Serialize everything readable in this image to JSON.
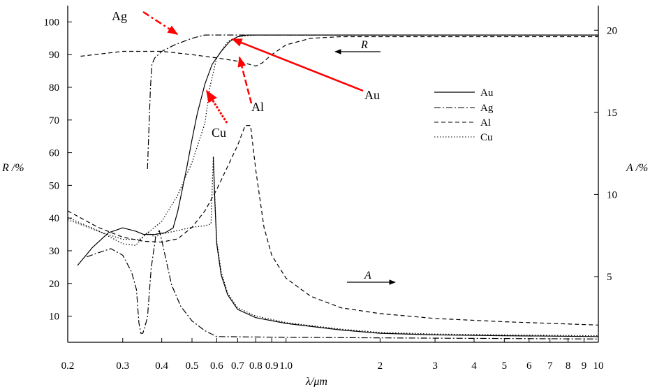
{
  "chart_data": {
    "type": "line",
    "title": "",
    "xlabel": "λ/μm",
    "ylabel_left": "R /%",
    "ylabel_right": "A /%",
    "x_scale": "log",
    "xlim": [
      0.2,
      10
    ],
    "ylim_left": [
      2,
      105
    ],
    "ylim_right": [
      1,
      21.5
    ],
    "x_ticks": [
      {
        "v": 0.2,
        "label": "0.2"
      },
      {
        "v": 0.3,
        "label": "0.3"
      },
      {
        "v": 0.4,
        "label": "0.4"
      },
      {
        "v": 0.5,
        "label": "0.5"
      },
      {
        "v": 0.6,
        "label": "0.6"
      },
      {
        "v": 0.7,
        "label": "0.7"
      },
      {
        "v": 0.8,
        "label": "0.8"
      },
      {
        "v": 0.9,
        "label": "0.9"
      },
      {
        "v": 1.0,
        "label": "1.0"
      },
      {
        "v": 2,
        "label": "2"
      },
      {
        "v": 3,
        "label": "3"
      },
      {
        "v": 4,
        "label": "4"
      },
      {
        "v": 5,
        "label": "5"
      },
      {
        "v": 6,
        "label": "6"
      },
      {
        "v": 7,
        "label": "7"
      },
      {
        "v": 8,
        "label": "8"
      },
      {
        "v": 9,
        "label": "9"
      },
      {
        "v": 10,
        "label": "10"
      }
    ],
    "y_left_ticks": [
      {
        "v": 10,
        "label": "10"
      },
      {
        "v": 20,
        "label": "20"
      },
      {
        "v": 30,
        "label": "30"
      },
      {
        "v": 40,
        "label": "40"
      },
      {
        "v": 50,
        "label": "50"
      },
      {
        "v": 60,
        "label": "60"
      },
      {
        "v": 70,
        "label": "70"
      },
      {
        "v": 80,
        "label": "80"
      },
      {
        "v": 90,
        "label": "90"
      },
      {
        "v": 100,
        "label": "100"
      }
    ],
    "y_right_ticks": [
      {
        "v": 5,
        "label": "5"
      },
      {
        "v": 10,
        "label": "10"
      },
      {
        "v": 15,
        "label": "15"
      },
      {
        "v": 20,
        "label": "20"
      }
    ],
    "series": [
      {
        "name": "Au",
        "kind": "R",
        "style": "solid",
        "x": [
          0.215,
          0.24,
          0.27,
          0.3,
          0.33,
          0.35,
          0.38,
          0.41,
          0.435,
          0.45,
          0.48,
          0.5,
          0.52,
          0.55,
          0.58,
          0.62,
          0.66,
          0.7,
          0.75,
          0.9,
          1.5,
          3,
          10
        ],
        "y": [
          25.5,
          31,
          35.5,
          37,
          36,
          35,
          35,
          35.5,
          37,
          42,
          55,
          64,
          72,
          81,
          87,
          91,
          94,
          95.5,
          96,
          96,
          96,
          96,
          96
        ]
      },
      {
        "name": "Ag",
        "kind": "R",
        "style": "dashdot",
        "x": [
          0.36,
          0.368,
          0.372,
          0.38,
          0.4,
          0.44,
          0.5,
          0.55,
          0.6,
          0.65,
          0.7,
          1,
          3,
          10
        ],
        "y": [
          55,
          80,
          87,
          89,
          91,
          93,
          95,
          96,
          96,
          96,
          96,
          96,
          96,
          96
        ]
      },
      {
        "name": "Al",
        "kind": "R",
        "style": "dashed",
        "x": [
          0.22,
          0.3,
          0.4,
          0.5,
          0.6,
          0.7,
          0.8,
          0.84,
          0.9,
          1.0,
          1.2,
          1.5,
          2,
          3,
          10
        ],
        "y": [
          89.5,
          91,
          91,
          90,
          89,
          88,
          86.5,
          87.5,
          90,
          93,
          95,
          95.5,
          95.5,
          95.5,
          95.5
        ]
      },
      {
        "name": "Cu",
        "kind": "R",
        "style": "dotted",
        "x": [
          0.2,
          0.25,
          0.3,
          0.34,
          0.4,
          0.45,
          0.5,
          0.55,
          0.57,
          0.6,
          0.65,
          0.7,
          0.8,
          1,
          3,
          10
        ],
        "y": [
          39.5,
          36,
          33.5,
          33.5,
          39,
          47,
          57,
          69,
          80,
          89,
          94,
          95.5,
          96,
          96,
          96,
          96
        ]
      },
      {
        "name": "Au",
        "kind": "A",
        "style": "solid",
        "x": [
          0.585,
          0.592,
          0.6,
          0.62,
          0.65,
          0.7,
          0.8,
          1.0,
          1.5,
          2,
          3,
          5,
          10
        ],
        "y": [
          12.3,
          9.5,
          7.0,
          5.1,
          3.9,
          3.0,
          2.5,
          2.15,
          1.75,
          1.55,
          1.45,
          1.4,
          1.35
        ]
      },
      {
        "name": "Ag",
        "kind": "A",
        "style": "dashdot",
        "x": [
          0.23,
          0.255,
          0.275,
          0.3,
          0.32,
          0.332,
          0.338,
          0.343,
          0.348,
          0.36,
          0.37,
          0.383,
          0.393,
          0.4,
          0.43,
          0.46,
          0.5,
          0.55,
          0.6,
          1,
          3,
          10
        ],
        "y": [
          6.2,
          6.5,
          6.7,
          6.3,
          5.3,
          4.2,
          2.2,
          1.55,
          1.55,
          2.5,
          5.5,
          7.5,
          7.8,
          7.2,
          4.5,
          3.2,
          2.3,
          1.7,
          1.35,
          1.3,
          1.25,
          1.2
        ]
      },
      {
        "name": "Al",
        "kind": "A",
        "style": "dashed",
        "x": [
          0.2,
          0.25,
          0.3,
          0.35,
          0.4,
          0.45,
          0.5,
          0.55,
          0.6,
          0.65,
          0.7,
          0.74,
          0.77,
          0.8,
          0.85,
          0.9,
          1.0,
          1.2,
          1.5,
          2,
          3,
          5,
          10
        ],
        "y": [
          9.0,
          8.0,
          7.4,
          7.15,
          7.1,
          7.3,
          8.0,
          9.0,
          10.3,
          11.7,
          13.0,
          14.2,
          14.2,
          11.5,
          8.0,
          6.3,
          4.9,
          3.8,
          3.1,
          2.75,
          2.45,
          2.25,
          2.05
        ]
      },
      {
        "name": "Cu",
        "kind": "A",
        "style": "dotted",
        "x": [
          0.2,
          0.25,
          0.3,
          0.33,
          0.36,
          0.38,
          0.4,
          0.45,
          0.5,
          0.55,
          0.575,
          0.585,
          0.592,
          0.6,
          0.62,
          0.65,
          0.7,
          0.8,
          1.0,
          1.5,
          2,
          3,
          5,
          10
        ],
        "y": [
          8.6,
          7.8,
          7.0,
          6.9,
          7.7,
          7.4,
          7.6,
          7.8,
          8.0,
          8.1,
          8.2,
          12.3,
          9.7,
          7.2,
          5.3,
          4.0,
          3.1,
          2.6,
          2.2,
          1.8,
          1.6,
          1.5,
          1.45,
          1.4
        ]
      }
    ],
    "legend": {
      "placement": "right",
      "entries": [
        {
          "label": "Au",
          "style": "solid"
        },
        {
          "label": "Ag",
          "style": "dashdot"
        },
        {
          "label": "Al",
          "style": "dashed"
        },
        {
          "label": "Cu",
          "style": "dotted"
        }
      ]
    },
    "annotations": [
      {
        "text": "Ag",
        "type": "label"
      },
      {
        "text": "Cu",
        "type": "label"
      },
      {
        "text": "Al",
        "type": "label"
      },
      {
        "text": "Au",
        "type": "label"
      },
      {
        "text": "R",
        "type": "direction-arrow"
      },
      {
        "text": "A",
        "type": "direction-arrow"
      }
    ],
    "arrow_color": "#ff0000",
    "grid": false
  }
}
